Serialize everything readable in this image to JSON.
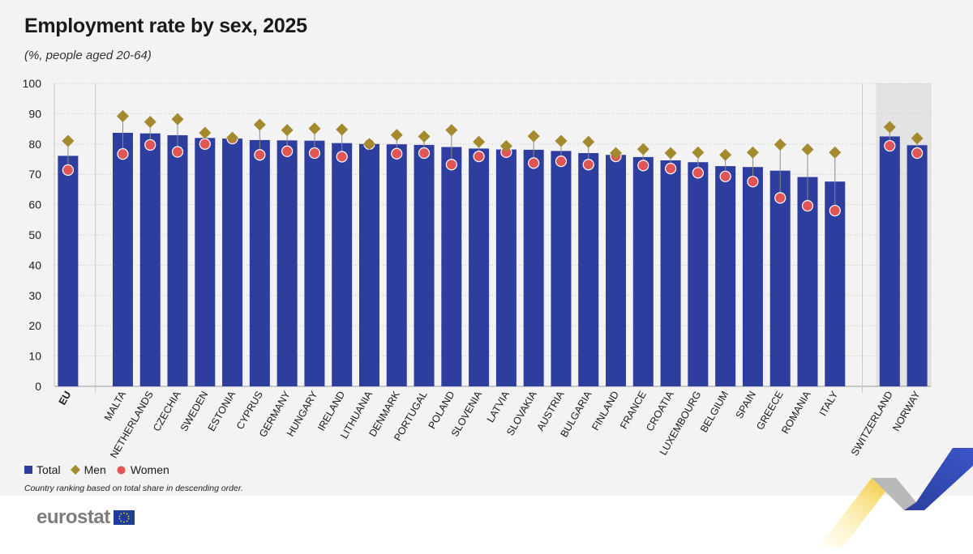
{
  "title": "Employment rate by sex, 2025",
  "subtitle": "(%, people aged 20-64)",
  "note": "Country ranking based on total share in descending order.",
  "logo_text": "eurostat",
  "legend": {
    "total": "Total",
    "men": "Men",
    "women": "Women"
  },
  "colors": {
    "total": "#2e3e9e",
    "men": "#a48a2e",
    "women": "#e05555",
    "highlight_bg": "#e3e3e3"
  },
  "chart_data": {
    "type": "bar",
    "title": "Employment rate by sex, 2025",
    "subtitle": "(%, people aged 20-64)",
    "ylim": [
      0,
      100
    ],
    "yticks": [
      0,
      10,
      20,
      30,
      40,
      50,
      60,
      70,
      80,
      90,
      100
    ],
    "grid": true,
    "legend_position": "bottom-left",
    "categories": [
      "EU",
      "Malta",
      "Netherlands",
      "Czechia",
      "Sweden",
      "Estonia",
      "Cyprus",
      "Germany",
      "Hungary",
      "Ireland",
      "Lithuania",
      "Denmark",
      "Portugal",
      "Poland",
      "Slovenia",
      "Latvia",
      "Slovakia",
      "Austria",
      "Bulgaria",
      "Finland",
      "France",
      "Croatia",
      "Luxembourg",
      "Belgium",
      "Spain",
      "Greece",
      "Romania",
      "Italy",
      "Switzerland",
      "Norway"
    ],
    "category_labels": [
      "EU",
      "MALTA",
      "NETHERLANDS",
      "CZECHIA",
      "SWEDEN",
      "ESTONIA",
      "CYPRUS",
      "GERMANY",
      "HUNGARY",
      "IRELAND",
      "LITHUANIA",
      "DENMARK",
      "PORTUGAL",
      "POLAND",
      "SLOVENIA",
      "LATVIA",
      "SLOVAKIA",
      "AUSTRIA",
      "BULGARIA",
      "FINLAND",
      "FRANCE",
      "CROATIA",
      "LUXEMBOURG",
      "BELGIUM",
      "SPAIN",
      "GREECE",
      "ROMANIA",
      "ITALY",
      "SWITZERLAND",
      "NORWAY"
    ],
    "groups": [
      "eu",
      "member",
      "member",
      "member",
      "member",
      "member",
      "member",
      "member",
      "member",
      "member",
      "member",
      "member",
      "member",
      "member",
      "member",
      "member",
      "member",
      "member",
      "member",
      "member",
      "member",
      "member",
      "member",
      "member",
      "member",
      "member",
      "member",
      "member",
      "efta",
      "efta"
    ],
    "series": [
      {
        "name": "Total",
        "values": [
          76.1,
          83.7,
          83.5,
          82.9,
          82.0,
          81.8,
          81.3,
          81.2,
          81.1,
          80.3,
          80.0,
          79.9,
          79.7,
          79.0,
          78.5,
          78.2,
          78.1,
          77.7,
          77.0,
          76.4,
          75.7,
          74.6,
          74.0,
          72.7,
          72.4,
          71.2,
          69.1,
          67.6,
          82.5,
          79.6
        ]
      },
      {
        "name": "Men",
        "values": [
          81.0,
          89.2,
          87.3,
          88.2,
          83.7,
          82.1,
          86.4,
          84.6,
          85.1,
          84.8,
          80.0,
          83.0,
          82.5,
          84.6,
          80.7,
          79.3,
          82.6,
          81.0,
          80.7,
          77.0,
          78.3,
          77.0,
          77.2,
          76.4,
          77.2,
          79.8,
          78.2,
          77.2,
          85.6,
          81.9
        ]
      },
      {
        "name": "Women",
        "values": [
          71.4,
          76.7,
          79.7,
          77.4,
          80.0,
          81.8,
          76.4,
          77.6,
          77.0,
          75.8,
          80.0,
          76.8,
          77.0,
          73.2,
          75.9,
          77.3,
          73.7,
          74.3,
          73.2,
          75.9,
          72.9,
          71.9,
          70.5,
          69.3,
          67.6,
          62.2,
          59.6,
          58.0,
          79.4,
          77.0
        ]
      }
    ]
  }
}
